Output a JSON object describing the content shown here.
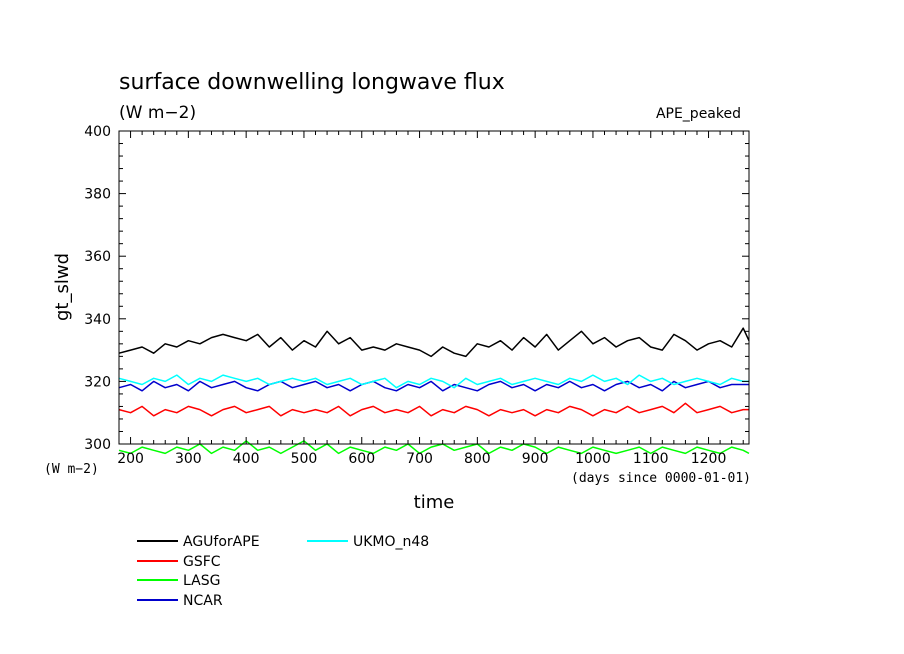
{
  "chart_data": {
    "type": "line",
    "title": "surface downwelling longwave flux",
    "units": "(W m−2)",
    "y_units_label": "(W m−2)",
    "experiment": "APE_peaked",
    "xlabel": "time",
    "x_units": "(days since 0000-01-01)",
    "ylabel": "gt_slwd",
    "xlim": [
      180,
      1270
    ],
    "ylim": [
      300,
      400
    ],
    "x_ticks": [
      "200",
      "300",
      "400",
      "500",
      "600",
      "700",
      "800",
      "900",
      "1000",
      "1100",
      "1200"
    ],
    "y_ticks": [
      "300",
      "320",
      "340",
      "360",
      "380",
      "400"
    ],
    "grid": false,
    "legend_position": "bottom-left",
    "series": [
      {
        "name": "AGUforAPE",
        "color": "#000000",
        "x": [
          180,
          200,
          220,
          240,
          260,
          280,
          300,
          320,
          340,
          360,
          380,
          400,
          420,
          440,
          460,
          480,
          500,
          520,
          540,
          560,
          580,
          600,
          620,
          640,
          660,
          680,
          700,
          720,
          740,
          760,
          780,
          800,
          820,
          840,
          860,
          880,
          900,
          920,
          940,
          960,
          980,
          1000,
          1020,
          1040,
          1060,
          1080,
          1100,
          1120,
          1140,
          1160,
          1180,
          1200,
          1220,
          1240,
          1260,
          1270
        ],
        "y": [
          329,
          330,
          331,
          329,
          332,
          331,
          333,
          332,
          334,
          335,
          334,
          333,
          335,
          331,
          334,
          330,
          333,
          331,
          336,
          332,
          334,
          330,
          331,
          330,
          332,
          331,
          330,
          328,
          331,
          329,
          328,
          332,
          331,
          333,
          330,
          334,
          331,
          335,
          330,
          333,
          336,
          332,
          334,
          331,
          333,
          334,
          331,
          330,
          335,
          333,
          330,
          332,
          333,
          331,
          337,
          333
        ]
      },
      {
        "name": "GSFC",
        "color": "#ff0000",
        "x": [
          180,
          200,
          220,
          240,
          260,
          280,
          300,
          320,
          340,
          360,
          380,
          400,
          420,
          440,
          460,
          480,
          500,
          520,
          540,
          560,
          580,
          600,
          620,
          640,
          660,
          680,
          700,
          720,
          740,
          760,
          780,
          800,
          820,
          840,
          860,
          880,
          900,
          920,
          940,
          960,
          980,
          1000,
          1020,
          1040,
          1060,
          1080,
          1100,
          1120,
          1140,
          1160,
          1180,
          1200,
          1220,
          1240,
          1260,
          1270
        ],
        "y": [
          311,
          310,
          312,
          309,
          311,
          310,
          312,
          311,
          309,
          311,
          312,
          310,
          311,
          312,
          309,
          311,
          310,
          311,
          310,
          312,
          309,
          311,
          312,
          310,
          311,
          310,
          312,
          309,
          311,
          310,
          312,
          311,
          309,
          311,
          310,
          311,
          309,
          311,
          310,
          312,
          311,
          309,
          311,
          310,
          312,
          310,
          311,
          312,
          310,
          313,
          310,
          311,
          312,
          310,
          311,
          311
        ]
      },
      {
        "name": "LASG",
        "color": "#00ff00",
        "x": [
          180,
          200,
          220,
          240,
          260,
          280,
          300,
          320,
          340,
          360,
          380,
          400,
          420,
          440,
          460,
          480,
          500,
          520,
          540,
          560,
          580,
          600,
          620,
          640,
          660,
          680,
          700,
          720,
          740,
          760,
          780,
          800,
          820,
          840,
          860,
          880,
          900,
          920,
          940,
          960,
          980,
          1000,
          1020,
          1040,
          1060,
          1080,
          1100,
          1120,
          1140,
          1160,
          1180,
          1200,
          1220,
          1240,
          1260,
          1270
        ],
        "y": [
          298,
          297,
          299,
          298,
          297,
          299,
          298,
          300,
          297,
          299,
          298,
          301,
          298,
          299,
          297,
          299,
          301,
          298,
          300,
          297,
          299,
          298,
          297,
          299,
          298,
          300,
          297,
          299,
          300,
          298,
          299,
          300,
          297,
          299,
          298,
          300,
          299,
          297,
          299,
          298,
          297,
          299,
          298,
          297,
          298,
          299,
          297,
          299,
          298,
          297,
          299,
          298,
          297,
          299,
          298,
          297
        ]
      },
      {
        "name": "NCAR",
        "color": "#0000cc",
        "x": [
          180,
          200,
          220,
          240,
          260,
          280,
          300,
          320,
          340,
          360,
          380,
          400,
          420,
          440,
          460,
          480,
          500,
          520,
          540,
          560,
          580,
          600,
          620,
          640,
          660,
          680,
          700,
          720,
          740,
          760,
          780,
          800,
          820,
          840,
          860,
          880,
          900,
          920,
          940,
          960,
          980,
          1000,
          1020,
          1040,
          1060,
          1080,
          1100,
          1120,
          1140,
          1160,
          1180,
          1200,
          1220,
          1240,
          1260,
          1270
        ],
        "y": [
          318,
          319,
          317,
          320,
          318,
          319,
          317,
          320,
          318,
          319,
          320,
          318,
          317,
          319,
          320,
          318,
          319,
          320,
          318,
          319,
          317,
          319,
          320,
          318,
          317,
          319,
          318,
          320,
          317,
          319,
          318,
          317,
          319,
          320,
          318,
          319,
          317,
          319,
          318,
          320,
          318,
          319,
          317,
          319,
          320,
          318,
          319,
          317,
          320,
          318,
          319,
          320,
          318,
          319,
          319,
          319
        ]
      },
      {
        "name": "UKMO_n48",
        "color": "#00ffff",
        "x": [
          180,
          200,
          220,
          240,
          260,
          280,
          300,
          320,
          340,
          360,
          380,
          400,
          420,
          440,
          460,
          480,
          500,
          520,
          540,
          560,
          580,
          600,
          620,
          640,
          660,
          680,
          700,
          720,
          740,
          760,
          780,
          800,
          820,
          840,
          860,
          880,
          900,
          920,
          940,
          960,
          980,
          1000,
          1020,
          1040,
          1060,
          1080,
          1100,
          1120,
          1140,
          1160,
          1180,
          1200,
          1220,
          1240,
          1260,
          1270
        ],
        "y": [
          321,
          320,
          319,
          321,
          320,
          322,
          319,
          321,
          320,
          322,
          321,
          320,
          321,
          319,
          320,
          321,
          320,
          321,
          319,
          320,
          321,
          319,
          320,
          321,
          318,
          320,
          319,
          321,
          320,
          318,
          321,
          319,
          320,
          321,
          319,
          320,
          321,
          320,
          319,
          321,
          320,
          322,
          320,
          321,
          319,
          322,
          320,
          321,
          319,
          320,
          321,
          320,
          319,
          321,
          320,
          320
        ]
      }
    ]
  }
}
